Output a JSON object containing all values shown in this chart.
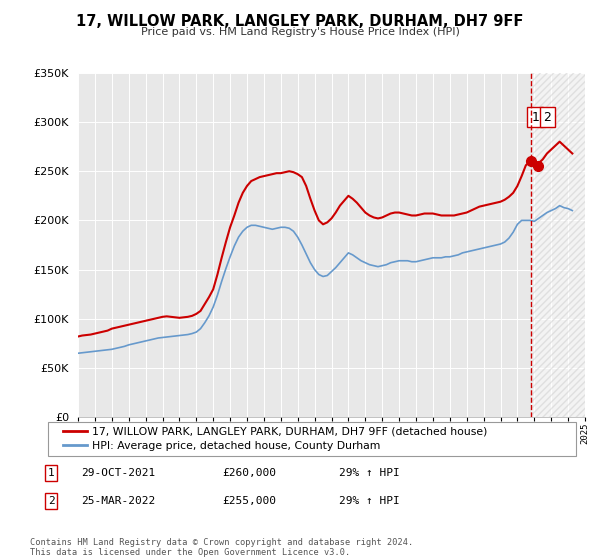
{
  "title": "17, WILLOW PARK, LANGLEY PARK, DURHAM, DH7 9FF",
  "subtitle": "Price paid vs. HM Land Registry's House Price Index (HPI)",
  "ylim": [
    0,
    350000
  ],
  "xlim_start": 1995,
  "xlim_end": 2025,
  "red_line_label": "17, WILLOW PARK, LANGLEY PARK, DURHAM, DH7 9FF (detached house)",
  "blue_line_label": "HPI: Average price, detached house, County Durham",
  "transaction1_date": "29-OCT-2021",
  "transaction1_price": "£260,000",
  "transaction1_hpi": "29% ↑ HPI",
  "transaction2_date": "25-MAR-2022",
  "transaction2_price": "£255,000",
  "transaction2_hpi": "29% ↑ HPI",
  "footer": "Contains HM Land Registry data © Crown copyright and database right 2024.\nThis data is licensed under the Open Government Licence v3.0.",
  "vline_x": 2021.83,
  "red_color": "#cc0000",
  "blue_color": "#6699cc",
  "marker1_x": 2021.83,
  "marker1_y": 260000,
  "marker2_x": 2022.23,
  "marker2_y": 255000,
  "red_data_x": [
    1995.0,
    1995.25,
    1995.5,
    1995.75,
    1996.0,
    1996.25,
    1996.5,
    1996.75,
    1997.0,
    1997.25,
    1997.5,
    1997.75,
    1998.0,
    1998.25,
    1998.5,
    1998.75,
    1999.0,
    1999.25,
    1999.5,
    1999.75,
    2000.0,
    2000.25,
    2000.5,
    2000.75,
    2001.0,
    2001.25,
    2001.5,
    2001.75,
    2002.0,
    2002.25,
    2002.5,
    2002.75,
    2003.0,
    2003.25,
    2003.5,
    2003.75,
    2004.0,
    2004.25,
    2004.5,
    2004.75,
    2005.0,
    2005.25,
    2005.5,
    2005.75,
    2006.0,
    2006.25,
    2006.5,
    2006.75,
    2007.0,
    2007.25,
    2007.5,
    2007.75,
    2008.0,
    2008.25,
    2008.5,
    2008.75,
    2009.0,
    2009.25,
    2009.5,
    2009.75,
    2010.0,
    2010.25,
    2010.5,
    2010.75,
    2011.0,
    2011.25,
    2011.5,
    2011.75,
    2012.0,
    2012.25,
    2012.5,
    2012.75,
    2013.0,
    2013.25,
    2013.5,
    2013.75,
    2014.0,
    2014.25,
    2014.5,
    2014.75,
    2015.0,
    2015.25,
    2015.5,
    2015.75,
    2016.0,
    2016.25,
    2016.5,
    2016.75,
    2017.0,
    2017.25,
    2017.5,
    2017.75,
    2018.0,
    2018.25,
    2018.5,
    2018.75,
    2019.0,
    2019.25,
    2019.5,
    2019.75,
    2020.0,
    2020.25,
    2020.5,
    2020.75,
    2021.0,
    2021.25,
    2021.5,
    2021.75,
    2022.0,
    2022.25,
    2022.5,
    2022.75,
    2023.0,
    2023.25,
    2023.5,
    2023.75,
    2024.0,
    2024.25
  ],
  "red_data_y": [
    82000,
    83000,
    83500,
    84000,
    85000,
    86000,
    87000,
    88000,
    90000,
    91000,
    92000,
    93000,
    94000,
    95000,
    96000,
    97000,
    98000,
    99000,
    100000,
    101000,
    102000,
    102500,
    102000,
    101500,
    101000,
    101500,
    102000,
    103000,
    105000,
    108000,
    115000,
    122000,
    130000,
    145000,
    162000,
    178000,
    193000,
    205000,
    218000,
    228000,
    235000,
    240000,
    242000,
    244000,
    245000,
    246000,
    247000,
    248000,
    248000,
    249000,
    250000,
    249000,
    247000,
    244000,
    235000,
    222000,
    210000,
    200000,
    196000,
    198000,
    202000,
    208000,
    215000,
    220000,
    225000,
    222000,
    218000,
    213000,
    208000,
    205000,
    203000,
    202000,
    203000,
    205000,
    207000,
    208000,
    208000,
    207000,
    206000,
    205000,
    205000,
    206000,
    207000,
    207000,
    207000,
    206000,
    205000,
    205000,
    205000,
    205000,
    206000,
    207000,
    208000,
    210000,
    212000,
    214000,
    215000,
    216000,
    217000,
    218000,
    219000,
    221000,
    224000,
    228000,
    235000,
    245000,
    256000,
    260000,
    255000,
    258000,
    262000,
    268000,
    272000,
    276000,
    280000,
    276000,
    272000,
    268000
  ],
  "blue_data_x": [
    1995.0,
    1995.25,
    1995.5,
    1995.75,
    1996.0,
    1996.25,
    1996.5,
    1996.75,
    1997.0,
    1997.25,
    1997.5,
    1997.75,
    1998.0,
    1998.25,
    1998.5,
    1998.75,
    1999.0,
    1999.25,
    1999.5,
    1999.75,
    2000.0,
    2000.25,
    2000.5,
    2000.75,
    2001.0,
    2001.25,
    2001.5,
    2001.75,
    2002.0,
    2002.25,
    2002.5,
    2002.75,
    2003.0,
    2003.25,
    2003.5,
    2003.75,
    2004.0,
    2004.25,
    2004.5,
    2004.75,
    2005.0,
    2005.25,
    2005.5,
    2005.75,
    2006.0,
    2006.25,
    2006.5,
    2006.75,
    2007.0,
    2007.25,
    2007.5,
    2007.75,
    2008.0,
    2008.25,
    2008.5,
    2008.75,
    2009.0,
    2009.25,
    2009.5,
    2009.75,
    2010.0,
    2010.25,
    2010.5,
    2010.75,
    2011.0,
    2011.25,
    2011.5,
    2011.75,
    2012.0,
    2012.25,
    2012.5,
    2012.75,
    2013.0,
    2013.25,
    2013.5,
    2013.75,
    2014.0,
    2014.25,
    2014.5,
    2014.75,
    2015.0,
    2015.25,
    2015.5,
    2015.75,
    2016.0,
    2016.25,
    2016.5,
    2016.75,
    2017.0,
    2017.25,
    2017.5,
    2017.75,
    2018.0,
    2018.25,
    2018.5,
    2018.75,
    2019.0,
    2019.25,
    2019.5,
    2019.75,
    2020.0,
    2020.25,
    2020.5,
    2020.75,
    2021.0,
    2021.25,
    2021.5,
    2021.75,
    2022.0,
    2022.25,
    2022.5,
    2022.75,
    2023.0,
    2023.25,
    2023.5,
    2023.75,
    2024.0,
    2024.25
  ],
  "blue_data_y": [
    65000,
    65500,
    66000,
    66500,
    67000,
    67500,
    68000,
    68500,
    69000,
    70000,
    71000,
    72000,
    73500,
    74500,
    75500,
    76500,
    77500,
    78500,
    79500,
    80500,
    81000,
    81500,
    82000,
    82500,
    83000,
    83500,
    84000,
    85000,
    86500,
    90000,
    96000,
    103000,
    112000,
    124000,
    138000,
    151000,
    163000,
    174000,
    183000,
    189000,
    193000,
    195000,
    195000,
    194000,
    193000,
    192000,
    191000,
    192000,
    193000,
    193000,
    192000,
    189000,
    183000,
    175000,
    166000,
    157000,
    150000,
    145000,
    143000,
    144000,
    148000,
    152000,
    157000,
    162000,
    167000,
    165000,
    162000,
    159000,
    157000,
    155000,
    154000,
    153000,
    154000,
    155000,
    157000,
    158000,
    159000,
    159000,
    159000,
    158000,
    158000,
    159000,
    160000,
    161000,
    162000,
    162000,
    162000,
    163000,
    163000,
    164000,
    165000,
    167000,
    168000,
    169000,
    170000,
    171000,
    172000,
    173000,
    174000,
    175000,
    176000,
    178000,
    182000,
    188000,
    196000,
    200000,
    200000,
    200000,
    199000,
    202000,
    205000,
    208000,
    210000,
    212000,
    215000,
    213000,
    212000,
    210000
  ]
}
